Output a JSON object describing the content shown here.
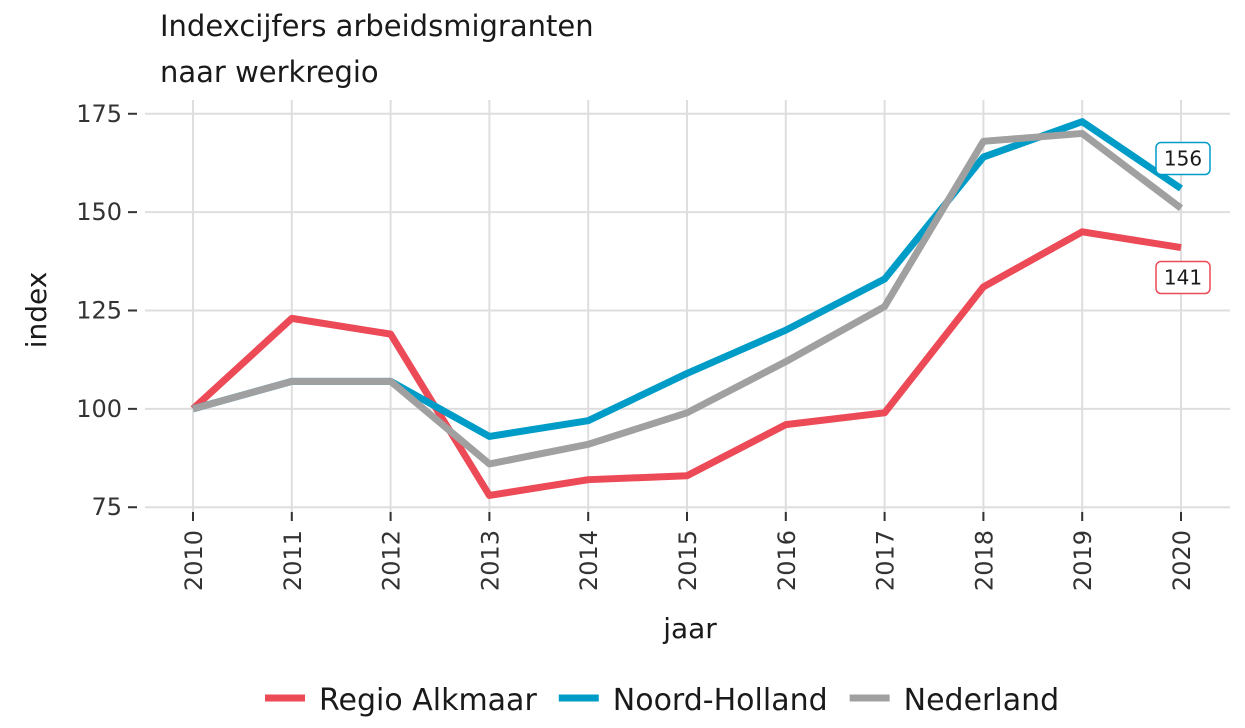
{
  "chart_data": {
    "type": "line",
    "title": "Indexcijfers arbeidsmigranten",
    "subtitle": "naar werkregio",
    "x_label": "jaar",
    "y_label": "index",
    "categories": [
      "2010",
      "2011",
      "2012",
      "2013",
      "2014",
      "2015",
      "2016",
      "2017",
      "2018",
      "2019",
      "2020"
    ],
    "series": [
      {
        "name": "Regio Alkmaar",
        "color": "#ec4a56",
        "end_label": true,
        "values": [
          100,
          123,
          119,
          78,
          82,
          83,
          96,
          99,
          131,
          145,
          141
        ]
      },
      {
        "name": "Noord-Holland",
        "color": "#009cc8",
        "end_label": true,
        "values": [
          100,
          107,
          107,
          93,
          97,
          109,
          120,
          133,
          164,
          173,
          156
        ]
      },
      {
        "name": "Nederland",
        "color": "#a0a0a0",
        "end_label": false,
        "values": [
          100,
          107,
          107,
          86,
          91,
          99,
          112,
          126,
          168,
          170,
          151
        ]
      }
    ],
    "ylim": [
      71.5,
      178.5
    ],
    "yticks": [
      75,
      100,
      125,
      150,
      175
    ],
    "grid": true,
    "legend": "bottom"
  }
}
